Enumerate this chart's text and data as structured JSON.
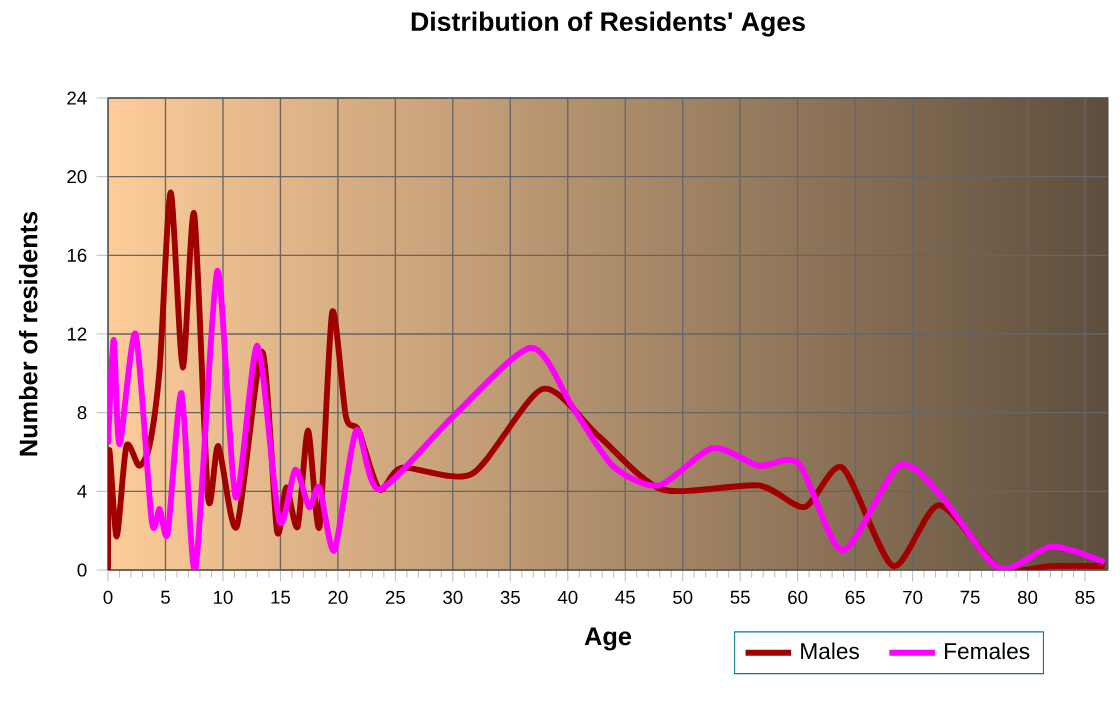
{
  "chart_data": {
    "type": "line",
    "title": "Distribution of Residents' Ages",
    "xlabel": "Age",
    "ylabel": "Number of residents",
    "xlim": [
      0,
      87
    ],
    "xticks": [
      0,
      5,
      10,
      15,
      20,
      25,
      30,
      35,
      40,
      45,
      50,
      55,
      60,
      65,
      70,
      75,
      80,
      85
    ],
    "ylim": [
      0,
      24
    ],
    "yticks": [
      0,
      4,
      8,
      12,
      16,
      20,
      24
    ],
    "grid": true,
    "legend": "bottom right",
    "series": [
      {
        "name": "Males",
        "color": "#a00000",
        "x": [
          0,
          0.1,
          0.75,
          1.6,
          2.7,
          3.6,
          4.5,
          5.45,
          6.5,
          7.5,
          8.7,
          9.6,
          11.2,
          13.4,
          14.7,
          15.5,
          16.5,
          17.4,
          18.4,
          19.5,
          20.7,
          21.8,
          23.6,
          25.6,
          31.7,
          37.8,
          42.7,
          48.2,
          56.6,
          60.6,
          63.9,
          68.3,
          72.3,
          77.5,
          82.1,
          86.7
        ],
        "values": [
          0,
          6.1,
          1.7,
          6.3,
          5.3,
          6.3,
          10.3,
          19.2,
          10.3,
          18.1,
          3.7,
          6.3,
          2.2,
          11.1,
          2.0,
          4.2,
          2.2,
          7.1,
          2.2,
          13.1,
          7.8,
          7.1,
          4.1,
          5.2,
          4.9,
          9.2,
          6.8,
          4.1,
          4.3,
          3.2,
          5.2,
          0.2,
          3.3,
          0.1,
          0.2,
          0.2
        ]
      },
      {
        "name": "Females",
        "color": "#ff00ff",
        "x": [
          0,
          0.5,
          1.0,
          2.4,
          3.8,
          4.5,
          5.2,
          6.4,
          7.6,
          9.5,
          11.1,
          13.0,
          14.9,
          16.3,
          17.5,
          18.4,
          19.7,
          21.6,
          23.6,
          30.0,
          36.8,
          40.4,
          43.9,
          47.9,
          52.6,
          56.6,
          60.1,
          63.9,
          68.8,
          72.3,
          77.5,
          82.1,
          86.7
        ],
        "values": [
          6.4,
          11.7,
          6.4,
          12.0,
          2.5,
          3.1,
          1.9,
          9.0,
          0,
          15.2,
          3.7,
          11.4,
          2.5,
          5.1,
          3.2,
          4.2,
          1.0,
          7.1,
          4.1,
          7.8,
          11.3,
          8.3,
          5.3,
          4.3,
          6.2,
          5.3,
          5.4,
          1.0,
          5.3,
          3.9,
          0.1,
          1.2,
          0.4
        ]
      }
    ]
  }
}
